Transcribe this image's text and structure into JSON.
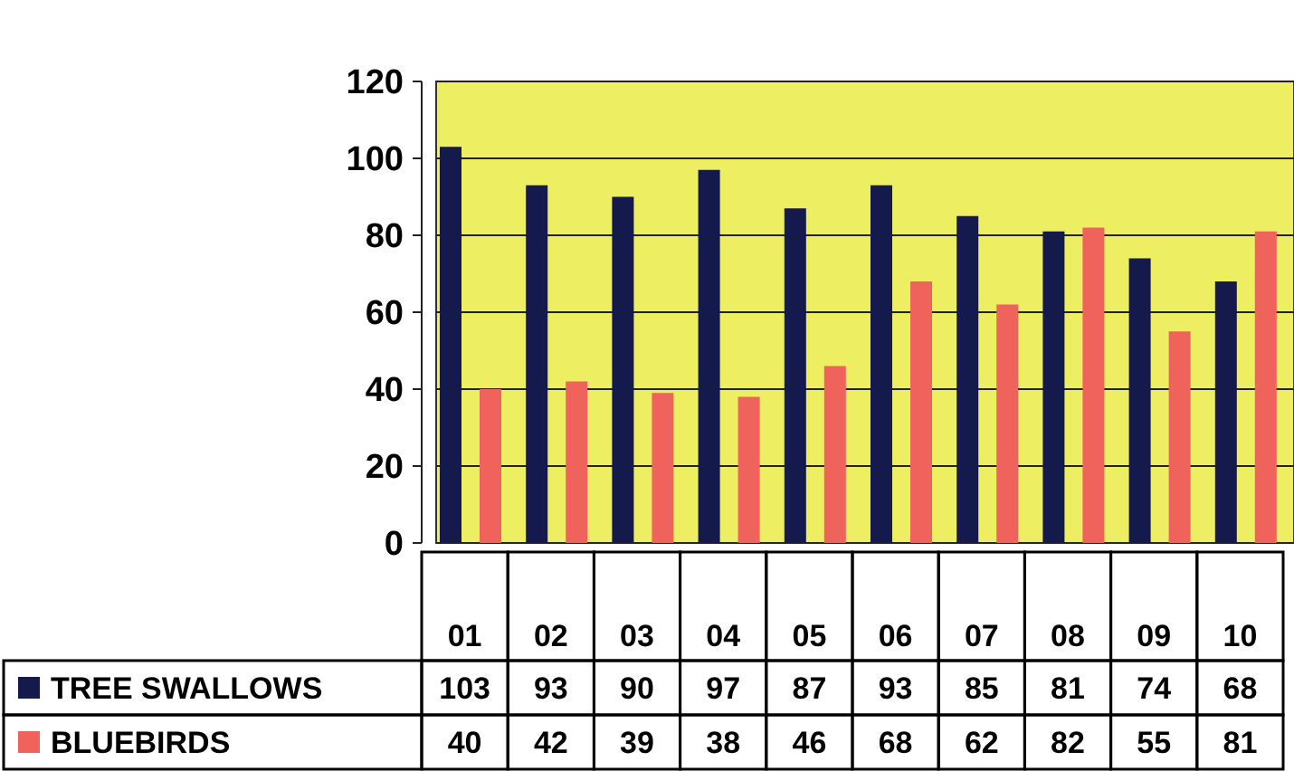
{
  "chart_data": {
    "type": "bar",
    "categories": [
      "01",
      "02",
      "03",
      "04",
      "05",
      "06",
      "07",
      "08",
      "09",
      "10"
    ],
    "series": [
      {
        "name": "TREE SWALLOWS",
        "color": "#141a4c",
        "values": [
          103,
          93,
          90,
          97,
          87,
          93,
          85,
          81,
          74,
          68
        ]
      },
      {
        "name": "BLUEBIRDS",
        "color": "#f0625c",
        "values": [
          40,
          42,
          39,
          38,
          46,
          68,
          62,
          82,
          55,
          81
        ]
      }
    ],
    "ylim": [
      0,
      120
    ],
    "yticks": [
      0,
      20,
      40,
      60,
      80,
      100,
      120
    ],
    "grid": "y",
    "data_labels": true,
    "legend": "bottom left"
  }
}
